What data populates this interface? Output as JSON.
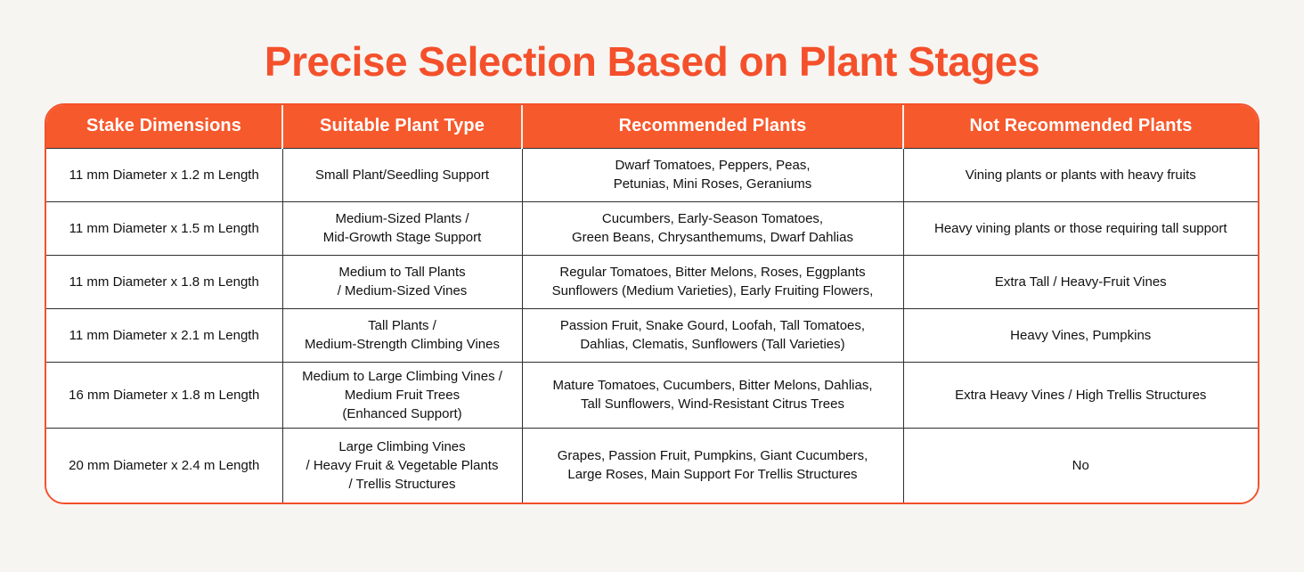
{
  "title": "Precise Selection Based on Plant Stages",
  "colors": {
    "accent": "#F4502B",
    "header_bg": "#F6592C",
    "grid_line": "#2F2F2F",
    "page_bg": "#F7F5F2",
    "header_text": "#FFFFFF",
    "body_text": "#111111"
  },
  "table": {
    "headers": [
      "Stake Dimensions",
      "Suitable Plant Type",
      "Recommended Plants",
      "Not Recommended Plants"
    ],
    "rows": [
      {
        "dimensions": "11 mm Diameter x 1.2 m Length",
        "plant_type": "Small Plant/Seedling Support",
        "recommended": "Dwarf Tomatoes, Peppers, Peas,\nPetunias, Mini Roses, Geraniums",
        "not_recommended": "Vining plants or plants with heavy fruits"
      },
      {
        "dimensions": "11 mm Diameter x 1.5 m Length",
        "plant_type": "Medium-Sized Plants /\nMid-Growth Stage Support",
        "recommended": "Cucumbers, Early-Season Tomatoes,\nGreen Beans, Chrysanthemums, Dwarf Dahlias",
        "not_recommended": "Heavy vining plants or those requiring tall support"
      },
      {
        "dimensions": "11 mm Diameter x 1.8 m Length",
        "plant_type": "Medium to Tall Plants\n/ Medium-Sized Vines",
        "recommended": "Regular Tomatoes, Bitter Melons, Roses, Eggplants\nSunflowers (Medium Varieties), Early Fruiting Flowers,",
        "not_recommended": "Extra Tall / Heavy-Fruit Vines"
      },
      {
        "dimensions": "11 mm Diameter x 2.1 m Length",
        "plant_type": "Tall Plants /\nMedium-Strength Climbing Vines",
        "recommended": "Passion Fruit, Snake Gourd, Loofah, Tall Tomatoes,\nDahlias, Clematis, Sunflowers (Tall Varieties)",
        "not_recommended": "Heavy Vines, Pumpkins"
      },
      {
        "dimensions": "16 mm Diameter x 1.8 m Length",
        "plant_type": "Medium to Large Climbing Vines /\nMedium Fruit Trees\n(Enhanced Support)",
        "recommended": "Mature Tomatoes, Cucumbers, Bitter Melons, Dahlias,\nTall Sunflowers, Wind-Resistant Citrus Trees",
        "not_recommended": "Extra Heavy Vines / High Trellis Structures"
      },
      {
        "dimensions": "20 mm Diameter x 2.4 m Length",
        "plant_type": "Large Climbing Vines\n/ Heavy Fruit & Vegetable Plants\n/ Trellis Structures",
        "recommended": "Grapes, Passion Fruit, Pumpkins, Giant Cucumbers,\nLarge Roses, Main Support For Trellis Structures",
        "not_recommended": "No"
      }
    ]
  }
}
